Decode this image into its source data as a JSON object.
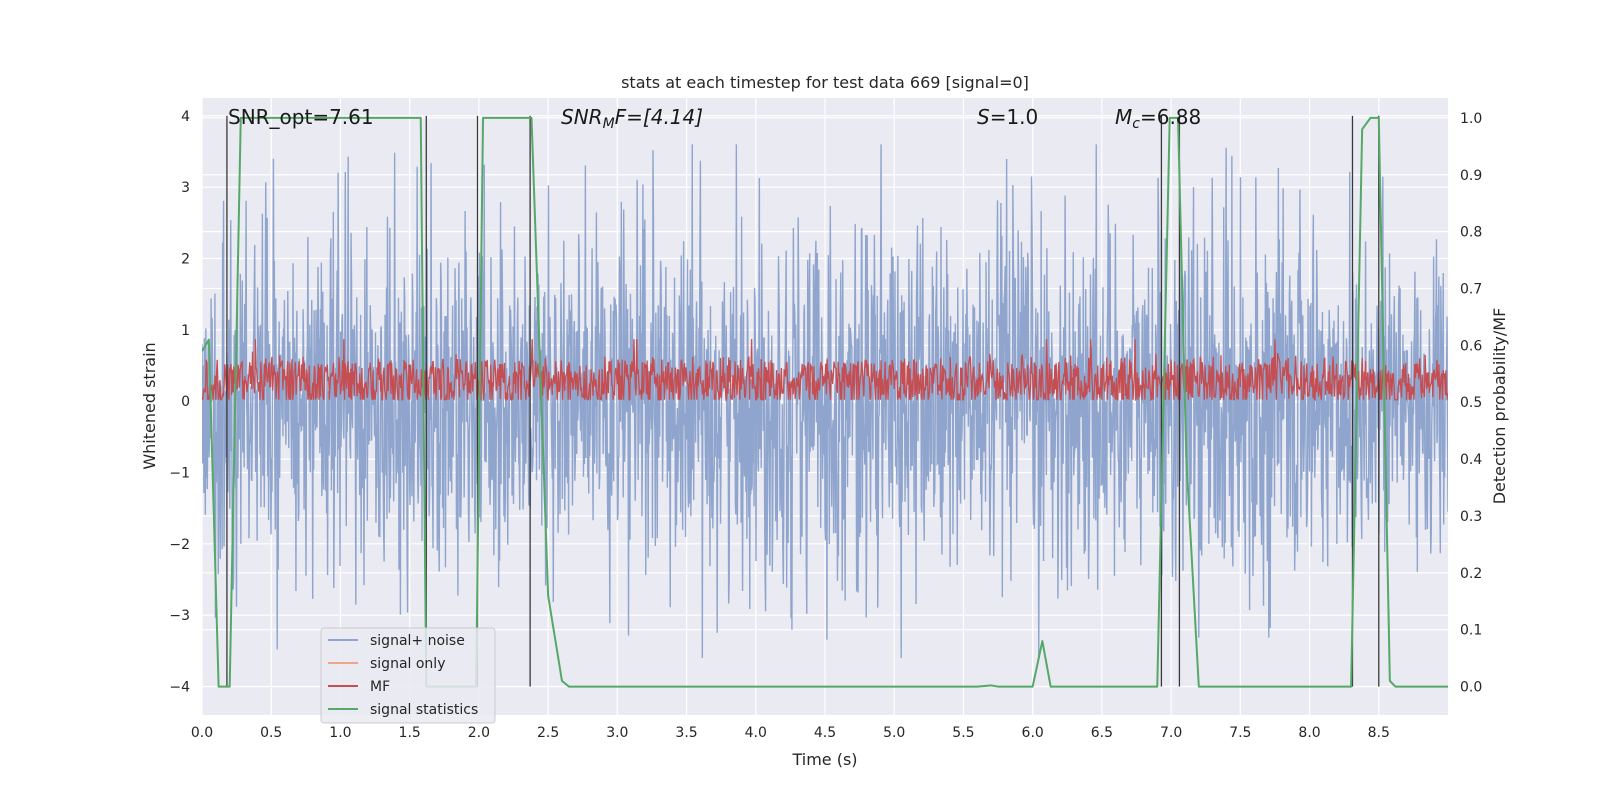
{
  "chart_data": {
    "type": "line",
    "title": "stats at each timestep for test data 669 [signal=0]",
    "xlabel": "Time (s)",
    "ylabel": "Whitened strain",
    "ylabel_right": "Detection probability/MF",
    "xlim": [
      0,
      9
    ],
    "ylim": [
      -4.4,
      4.25
    ],
    "ylim_right": [
      -0.05,
      1.035
    ],
    "x_ticks": [
      "0.0",
      "0.5",
      "1.0",
      "1.5",
      "2.0",
      "2.5",
      "3.0",
      "3.5",
      "4.0",
      "4.5",
      "5.0",
      "5.5",
      "6.0",
      "6.5",
      "7.0",
      "7.5",
      "8.0",
      "8.5"
    ],
    "y_ticks": [
      "−4",
      "−3",
      "−2",
      "−1",
      "0",
      "1",
      "2",
      "3",
      "4"
    ],
    "y_ticks_right": [
      "0.0",
      "0.1",
      "0.2",
      "0.3",
      "0.4",
      "0.5",
      "0.6",
      "0.7",
      "0.8",
      "0.9",
      "1.0"
    ],
    "grid": true,
    "legend_placement": "lower-left",
    "annotations": {
      "snr_opt": "SNR_opt=7.61",
      "snr_mf_sym": "SNR",
      "snr_mf_sub": "M",
      "snr_mf_rest": "F=[4.14]",
      "s_sym": "S",
      "s_rest": "=1.0",
      "mc_sym": "M",
      "mc_sub": "c",
      "mc_rest": "=6.88"
    },
    "series": [
      {
        "name": "signal+ noise",
        "color": "#8fa5cd",
        "kind": "noise",
        "amplitude": 3.0
      },
      {
        "name": "signal only",
        "color": "#eea58a",
        "kind": "flat",
        "values": []
      },
      {
        "name": "MF",
        "color": "#c44e52",
        "kind": "mf",
        "mean": 0.27,
        "spread": 0.2
      },
      {
        "name": "signal statistics",
        "color": "#55a868",
        "axis": "right",
        "x": [
          0.0,
          0.05,
          0.12,
          0.2,
          0.24,
          0.28,
          0.35,
          1.0,
          1.58,
          1.62,
          1.7,
          1.98,
          2.03,
          2.1,
          2.38,
          2.5,
          2.6,
          2.65,
          5.6,
          5.7,
          5.75,
          6.0,
          6.07,
          6.13,
          6.2,
          6.9,
          6.99,
          7.02,
          7.05,
          7.11,
          7.2,
          8.3,
          8.38,
          8.44,
          8.5,
          8.58,
          8.62,
          9.0
        ],
        "y": [
          0.59,
          0.61,
          0.0,
          0.0,
          0.5,
          1.0,
          1.0,
          1.0,
          1.0,
          0.0,
          0.0,
          0.0,
          1.0,
          1.0,
          1.0,
          0.16,
          0.01,
          0.0,
          0.0,
          0.002,
          0.0,
          0.0,
          0.08,
          0.0,
          0.0,
          0.0,
          1.0,
          1.0,
          1.0,
          0.4,
          0.0,
          0.0,
          0.98,
          1.0,
          1.0,
          0.01,
          0.0,
          0.0
        ]
      }
    ],
    "event_lines": [
      0.18,
      1.62,
      1.99,
      2.37,
      6.93,
      7.06,
      8.31,
      8.5
    ]
  }
}
